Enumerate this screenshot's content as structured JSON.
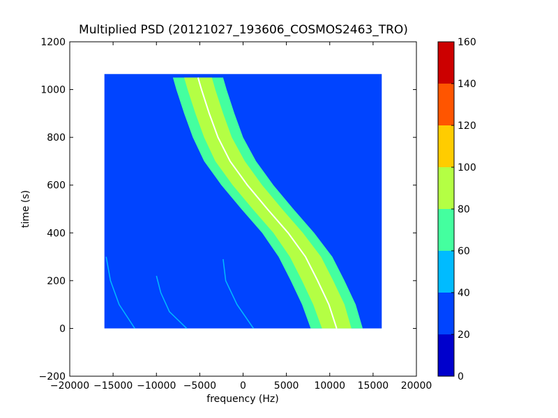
{
  "chart_data": {
    "type": "heatmap",
    "title": "Multiplied PSD (20121027_193606_COSMOS2463_TRO)",
    "xlabel": "frequency (Hz)",
    "ylabel": "time (s)",
    "xlim": [
      -20000,
      20000
    ],
    "ylim": [
      -200,
      1200
    ],
    "x_ticks": [
      -20000,
      -15000,
      -10000,
      -5000,
      0,
      5000,
      10000,
      15000,
      20000
    ],
    "y_ticks": [
      -200,
      0,
      200,
      400,
      600,
      800,
      1000,
      1200
    ],
    "data_extent": {
      "x": [
        -16000,
        16000
      ],
      "y": [
        0,
        1065
      ]
    },
    "background_level": 30,
    "colorbar": {
      "ticks": [
        0,
        20,
        40,
        60,
        80,
        100,
        120,
        140,
        160
      ],
      "levels": [
        {
          "range": [
            0,
            20
          ],
          "color": "#0000cc"
        },
        {
          "range": [
            20,
            40
          ],
          "color": "#0044ff"
        },
        {
          "range": [
            40,
            60
          ],
          "color": "#00bbff"
        },
        {
          "range": [
            60,
            80
          ],
          "color": "#44ff9f"
        },
        {
          "range": [
            80,
            100
          ],
          "color": "#b4ff44"
        },
        {
          "range": [
            100,
            120
          ],
          "color": "#ffcc00"
        },
        {
          "range": [
            120,
            140
          ],
          "color": "#ff5500"
        },
        {
          "range": [
            140,
            160
          ],
          "color": "#cc0000"
        }
      ]
    },
    "doppler_trace": {
      "description_points_time": [
        0,
        100,
        200,
        300,
        400,
        500,
        600,
        700,
        800,
        900,
        1000,
        1050
      ],
      "center_freq": [
        10800,
        9900,
        8600,
        7200,
        5200,
        2800,
        500,
        -1500,
        -2900,
        -3900,
        -4800,
        -5200
      ],
      "band_halfwidth_outer": [
        3000,
        3100,
        3100,
        3100,
        3000,
        3000,
        3000,
        3000,
        2900,
        2900,
        2900,
        2900
      ],
      "band_halfwidth_inner": [
        1700,
        1800,
        1800,
        1800,
        1700,
        1700,
        1700,
        1700,
        1600,
        1600,
        1600,
        1600
      ],
      "band_level_outer": 70,
      "band_level_inner": 90
    },
    "faint_arcs": [
      {
        "time": [
          300,
          200,
          100,
          0
        ],
        "freq": [
          -15800,
          -15300,
          -14300,
          -12500
        ],
        "level": 50
      },
      {
        "time": [
          220,
          150,
          70,
          0
        ],
        "freq": [
          -10000,
          -9500,
          -8500,
          -6500
        ],
        "level": 50
      },
      {
        "time": [
          290,
          200,
          100,
          0
        ],
        "freq": [
          -2300,
          -2000,
          -700,
          1200
        ],
        "level": 50
      }
    ]
  }
}
